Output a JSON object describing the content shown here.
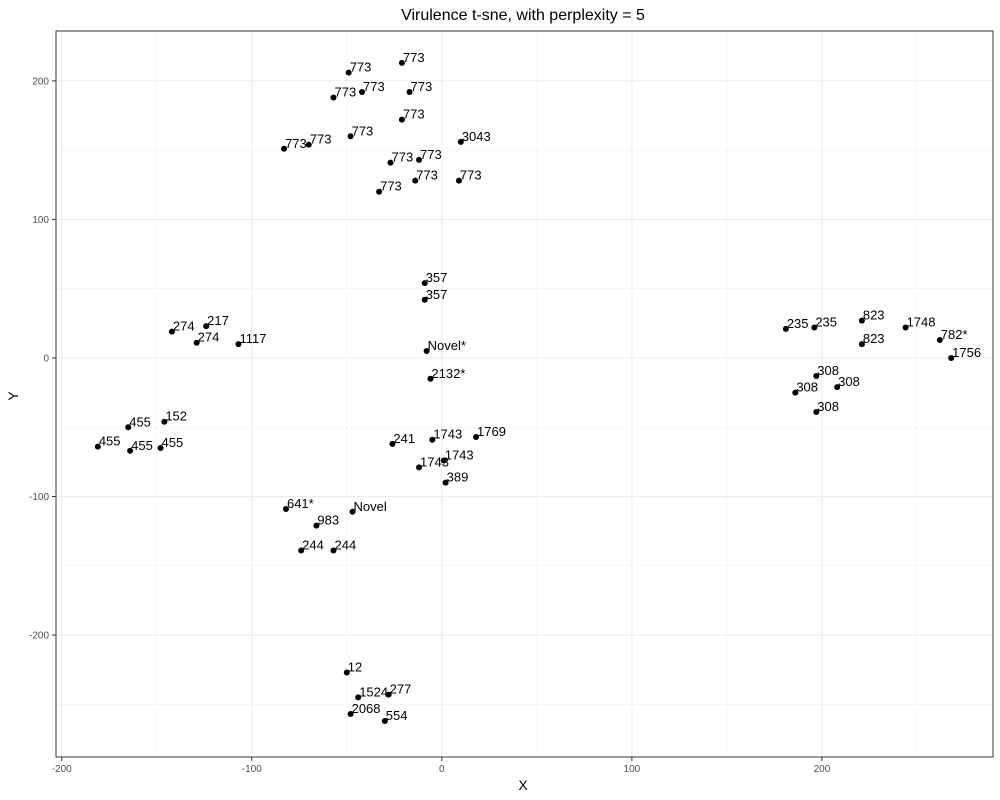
{
  "chart_data": {
    "type": "scatter",
    "title": "Virulence t-sne, with perplexity = 5",
    "xlabel": "X",
    "ylabel": "Y",
    "xlim": [
      -203,
      290
    ],
    "ylim": [
      -288,
      236
    ],
    "x_ticks": [
      -200,
      -100,
      0,
      100,
      200
    ],
    "y_ticks": [
      -200,
      -100,
      0,
      100,
      200
    ],
    "x_tick_labels": [
      "-200",
      "-100",
      "0",
      "100",
      "200"
    ],
    "y_tick_labels": [
      "-200",
      "-100",
      "0",
      "100",
      "200"
    ],
    "grid": true,
    "theme": "bw",
    "point_color": "#000000",
    "points": [
      {
        "x": -21,
        "y": 213,
        "label": "773"
      },
      {
        "x": -49,
        "y": 206,
        "label": "773"
      },
      {
        "x": -42,
        "y": 192,
        "label": "773"
      },
      {
        "x": -57,
        "y": 188,
        "label": "773"
      },
      {
        "x": -17,
        "y": 192,
        "label": "773"
      },
      {
        "x": -21,
        "y": 172,
        "label": "773"
      },
      {
        "x": -48,
        "y": 160,
        "label": "773"
      },
      {
        "x": 10,
        "y": 156,
        "label": "3043"
      },
      {
        "x": -83,
        "y": 151,
        "label": "773"
      },
      {
        "x": -70,
        "y": 154,
        "label": "773"
      },
      {
        "x": -12,
        "y": 143,
        "label": "773"
      },
      {
        "x": -27,
        "y": 141,
        "label": "773"
      },
      {
        "x": -14,
        "y": 128,
        "label": "773"
      },
      {
        "x": 9,
        "y": 128,
        "label": "773"
      },
      {
        "x": -33,
        "y": 120,
        "label": "773"
      },
      {
        "x": -9,
        "y": 54,
        "label": "357"
      },
      {
        "x": -9,
        "y": 42,
        "label": "357"
      },
      {
        "x": -8,
        "y": 5,
        "label": "Novel*"
      },
      {
        "x": -6,
        "y": -15,
        "label": "2132*"
      },
      {
        "x": -124,
        "y": 23,
        "label": "217"
      },
      {
        "x": -142,
        "y": 19,
        "label": "274"
      },
      {
        "x": -129,
        "y": 11,
        "label": "274"
      },
      {
        "x": -107,
        "y": 10,
        "label": "1117"
      },
      {
        "x": -146,
        "y": -46,
        "label": "152"
      },
      {
        "x": -165,
        "y": -50,
        "label": "455"
      },
      {
        "x": -181,
        "y": -64,
        "label": "455"
      },
      {
        "x": -164,
        "y": -67,
        "label": "455"
      },
      {
        "x": -148,
        "y": -65,
        "label": "455"
      },
      {
        "x": -26,
        "y": -62,
        "label": "241"
      },
      {
        "x": -5,
        "y": -59,
        "label": "1743"
      },
      {
        "x": 18,
        "y": -57,
        "label": "1769"
      },
      {
        "x": 1,
        "y": -74,
        "label": "1743"
      },
      {
        "x": -12,
        "y": -79,
        "label": "1743"
      },
      {
        "x": 2,
        "y": -90,
        "label": "389"
      },
      {
        "x": -82,
        "y": -109,
        "label": "641*"
      },
      {
        "x": -47,
        "y": -111,
        "label": "Novel"
      },
      {
        "x": -66,
        "y": -121,
        "label": "983"
      },
      {
        "x": -74,
        "y": -139,
        "label": "244"
      },
      {
        "x": -57,
        "y": -139,
        "label": "244"
      },
      {
        "x": -50,
        "y": -227,
        "label": "12"
      },
      {
        "x": -28,
        "y": -243,
        "label": "277"
      },
      {
        "x": -44,
        "y": -245,
        "label": "1524"
      },
      {
        "x": -48,
        "y": -257,
        "label": "2068"
      },
      {
        "x": -30,
        "y": -262,
        "label": "554"
      },
      {
        "x": 181,
        "y": 21,
        "label": "235"
      },
      {
        "x": 196,
        "y": 22,
        "label": "235"
      },
      {
        "x": 221,
        "y": 27,
        "label": "823"
      },
      {
        "x": 244,
        "y": 22,
        "label": "1748"
      },
      {
        "x": 262,
        "y": 13,
        "label": "782*"
      },
      {
        "x": 221,
        "y": 10,
        "label": "823"
      },
      {
        "x": 268,
        "y": 0,
        "label": "1756"
      },
      {
        "x": 197,
        "y": -13,
        "label": "308"
      },
      {
        "x": 208,
        "y": -21,
        "label": "308"
      },
      {
        "x": 186,
        "y": -25,
        "label": "308"
      },
      {
        "x": 197,
        "y": -39,
        "label": "308"
      }
    ]
  }
}
